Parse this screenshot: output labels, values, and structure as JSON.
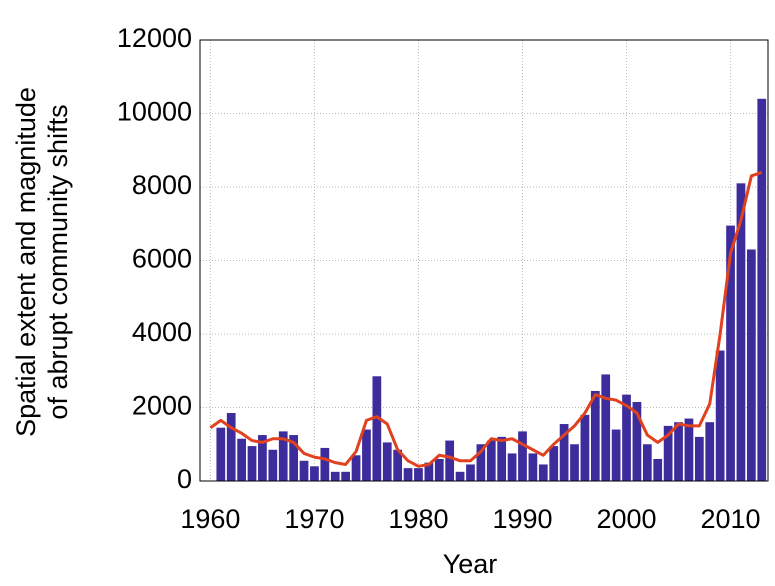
{
  "chart_data": {
    "type": "bar",
    "ylabel": [
      "Spatial extent and magnitude",
      "of abrupt community shifts"
    ],
    "xlabel": "Year",
    "x": [
      1960,
      1961,
      1962,
      1963,
      1964,
      1965,
      1966,
      1967,
      1968,
      1969,
      1970,
      1971,
      1972,
      1973,
      1974,
      1975,
      1976,
      1977,
      1978,
      1979,
      1980,
      1981,
      1982,
      1983,
      1984,
      1985,
      1986,
      1987,
      1988,
      1989,
      1990,
      1991,
      1992,
      1993,
      1994,
      1995,
      1996,
      1997,
      1998,
      1999,
      2000,
      2001,
      2002,
      2003,
      2004,
      2005,
      2006,
      2007,
      2008,
      2009,
      2010,
      2011,
      2012,
      2013
    ],
    "series": [
      {
        "type": "bar",
        "color": "#3d2d9c",
        "values": [
          null,
          1450,
          1850,
          1150,
          950,
          1250,
          850,
          1350,
          1250,
          550,
          400,
          900,
          250,
          250,
          700,
          1400,
          2850,
          1050,
          850,
          350,
          350,
          500,
          600,
          1100,
          250,
          450,
          1000,
          1100,
          1200,
          750,
          1350,
          750,
          450,
          950,
          1550,
          1000,
          1800,
          2450,
          2900,
          1400,
          2350,
          2150,
          1000,
          600,
          1500,
          1600,
          1700,
          1200,
          1600,
          3550,
          6950,
          8100,
          6300,
          10400
        ]
      },
      {
        "type": "line",
        "color": "#e0421f",
        "values": [
          1450,
          1650,
          1450,
          1300,
          1100,
          1050,
          1150,
          1150,
          1050,
          750,
          650,
          600,
          500,
          450,
          800,
          1650,
          1750,
          1550,
          850,
          550,
          400,
          450,
          700,
          650,
          550,
          550,
          800,
          1150,
          1100,
          1150,
          1000,
          850,
          700,
          1000,
          1250,
          1500,
          1850,
          2350,
          2250,
          2200,
          2050,
          1850,
          1250,
          1050,
          1250,
          1550,
          1500,
          1500,
          2100,
          4000,
          6200,
          7100,
          8300,
          8400
        ]
      }
    ],
    "xlim": [
      1959,
      2013.6
    ],
    "xticks": [
      1960,
      1970,
      1980,
      1990,
      2000,
      2010
    ],
    "ylim": [
      0,
      12000
    ],
    "yticks": [
      0,
      2000,
      4000,
      6000,
      8000,
      10000,
      12000
    ],
    "grid": true
  }
}
